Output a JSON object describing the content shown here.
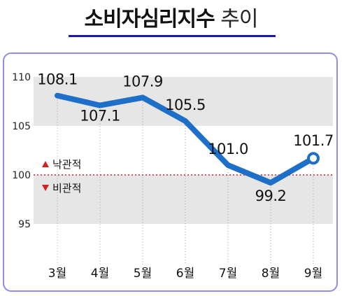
{
  "title": {
    "main": "소비자심리지수",
    "sub": "추이"
  },
  "colors": {
    "line": "#1e6fc8",
    "band": "#e6e6e6",
    "reference": "#d42020",
    "up": "#d42020",
    "down": "#d42020",
    "frame": "#8e8ee6"
  },
  "legend": {
    "optimistic": "낙관적",
    "pessimistic": "비관적"
  },
  "chart_data": {
    "type": "line",
    "title": "소비자심리지수 추이",
    "categories": [
      "3월",
      "4월",
      "5월",
      "6월",
      "7월",
      "8월",
      "9월"
    ],
    "values": [
      108.1,
      107.1,
      107.9,
      105.5,
      101.0,
      99.2,
      101.7
    ],
    "data_labels": [
      "108.1",
      "107.1",
      "107.9",
      "105.5",
      "101.0",
      "99.2",
      "101.7"
    ],
    "yticks": [
      95,
      100,
      105,
      110
    ],
    "ytick_labels": [
      "95",
      "100",
      "105",
      "110"
    ],
    "ylim": [
      95,
      110
    ],
    "reference_line": 100,
    "grid": false,
    "xlabel": "",
    "ylabel": ""
  }
}
